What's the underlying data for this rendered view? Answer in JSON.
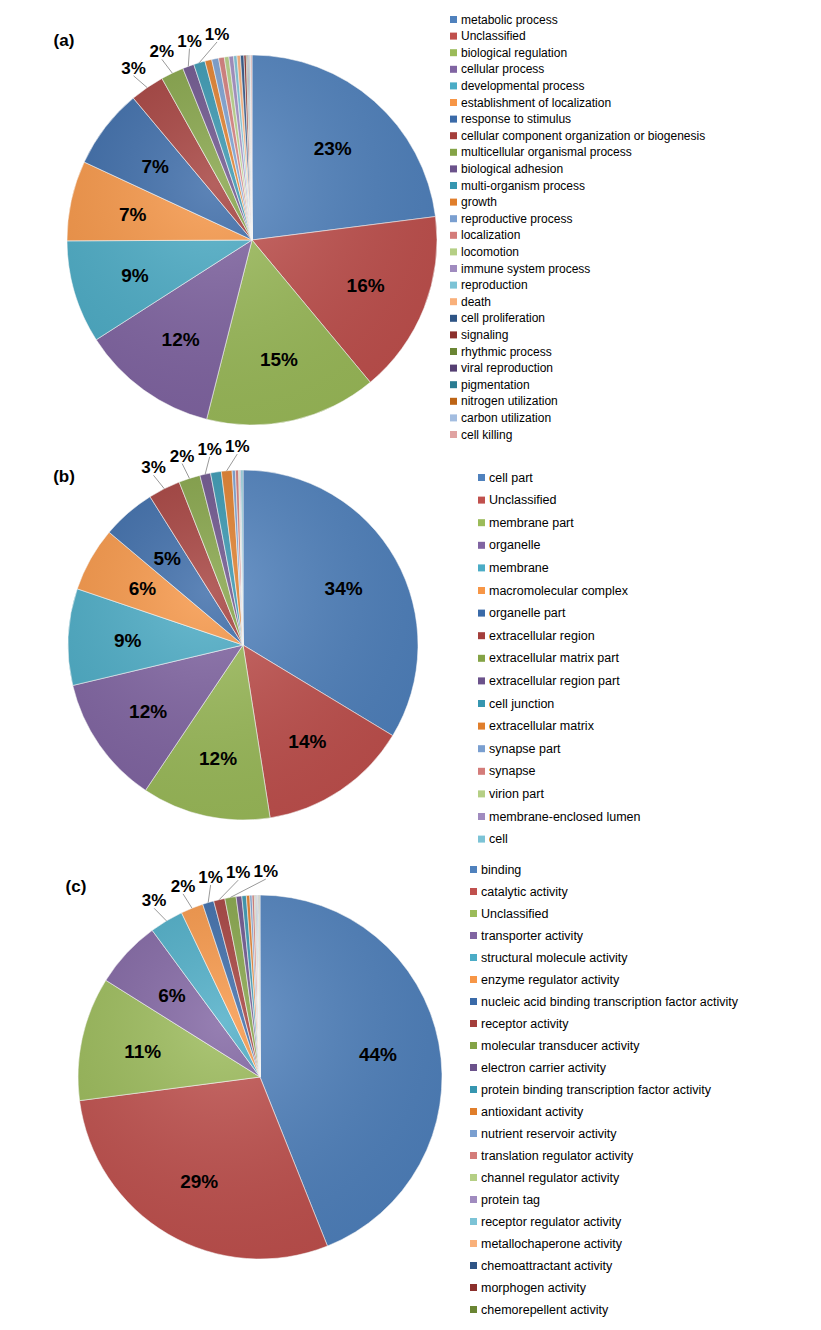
{
  "chart_data": [
    {
      "type": "pie",
      "title": "(a)",
      "data_labels": true,
      "legend": "right",
      "categories": [
        "metabolic process",
        "Unclassified",
        "biological regulation",
        "cellular process",
        "developmental process",
        "establishment of localization",
        "response to stimulus",
        "cellular component organization or biogenesis",
        "multicellular organismal process",
        "biological adhesion",
        "multi-organism process",
        "growth",
        "reproductive process",
        "localization",
        "locomotion",
        "immune system process",
        "reproduction",
        "death",
        "cell proliferation",
        "signaling",
        "rhythmic process",
        "viral reproduction",
        "pigmentation",
        "nitrogen utilization",
        "carbon utilization",
        "cell killing"
      ],
      "values": [
        23,
        16,
        15,
        12,
        9,
        7,
        7,
        3,
        2,
        1,
        1,
        0.6,
        0.6,
        0.5,
        0.4,
        0.4,
        0.3,
        0.3,
        0.3,
        0.2,
        0.1,
        0.1,
        0.1,
        0.05,
        0.05,
        0.1
      ],
      "value_labels": [
        "23%",
        "16%",
        "15%",
        "12%",
        "9%",
        "7%",
        "7%",
        "3%",
        "2%",
        "1%",
        "1%",
        null,
        null,
        null,
        null,
        null,
        null,
        null,
        null,
        null,
        null,
        null,
        null,
        null,
        null,
        null
      ],
      "colors": [
        "#4F81BD",
        "#C0504D",
        "#9BBB59",
        "#8064A2",
        "#4BACC6",
        "#F79646",
        "#3A6AA8",
        "#A43E3B",
        "#84A346",
        "#6B528B",
        "#3696B0",
        "#E07E2B",
        "#7A9FD0",
        "#D47C7A",
        "#B5CF85",
        "#A08BBF",
        "#7CC3D6",
        "#F9B07A",
        "#2E5485",
        "#8B2F2C",
        "#6A8533",
        "#553F72",
        "#2A7C92",
        "#BD6415",
        "#A3BDE0",
        "#E0A3A2"
      ]
    },
    {
      "type": "pie",
      "title": "(b)",
      "data_labels": true,
      "legend": "right",
      "categories": [
        "cell part",
        "Unclassified",
        "membrane part",
        "organelle",
        "membrane",
        "macromolecular complex",
        "organelle part",
        "extracellular region",
        "extracellular matrix part",
        "extracellular region part",
        "cell junction",
        "extracellular matrix",
        "synapse part",
        "synapse",
        "virion part",
        "membrane-enclosed lumen",
        "cell"
      ],
      "values": [
        34,
        14,
        12,
        12,
        9,
        6,
        5,
        3,
        2,
        1,
        1,
        1,
        0.3,
        0.3,
        0.1,
        0.1,
        0.2
      ],
      "value_labels": [
        "34%",
        "14%",
        "12%",
        "12%",
        "9%",
        "6%",
        "5%",
        "3%",
        "2%",
        "1%",
        null,
        "1%",
        null,
        null,
        null,
        null,
        null
      ],
      "colors": [
        "#4F81BD",
        "#C0504D",
        "#9BBB59",
        "#8064A2",
        "#4BACC6",
        "#F79646",
        "#3A6AA8",
        "#A43E3B",
        "#84A346",
        "#6B528B",
        "#3696B0",
        "#E07E2B",
        "#7A9FD0",
        "#D47C7A",
        "#B5CF85",
        "#A08BBF",
        "#7CC3D6"
      ]
    },
    {
      "type": "pie",
      "title": "(c)",
      "data_labels": true,
      "legend": "right",
      "categories": [
        "binding",
        "catalytic activity",
        "Unclassified",
        "transporter activity",
        "structural molecule activity",
        "enzyme regulator activity",
        "nucleic acid binding transcription factor activity",
        "receptor activity",
        "molecular transducer activity",
        "electron carrier activity",
        "protein binding transcription factor activity",
        "antioxidant activity",
        "nutrient reservoir activity",
        "translation regulator activity",
        "channel regulator activity",
        "protein tag",
        "receptor regulator activity",
        "metallochaperone activity",
        "chemoattractant activity",
        "morphogen activity",
        "chemorepellent activity"
      ],
      "values": [
        44,
        29,
        11,
        6,
        3,
        2,
        1,
        1,
        1,
        0.5,
        0.4,
        0.3,
        0.2,
        0.2,
        0.1,
        0.1,
        0.1,
        0.05,
        0.05,
        0.05,
        0.05
      ],
      "value_labels": [
        "44%",
        "29%",
        "11%",
        "6%",
        "3%",
        "2%",
        "1%",
        "1%",
        "1%",
        null,
        null,
        null,
        null,
        null,
        null,
        null,
        null,
        null,
        null,
        null,
        null
      ],
      "colors": [
        "#4F81BD",
        "#C0504D",
        "#9BBB59",
        "#8064A2",
        "#4BACC6",
        "#F79646",
        "#3A6AA8",
        "#A43E3B",
        "#84A346",
        "#6B528B",
        "#3696B0",
        "#E07E2B",
        "#7A9FD0",
        "#D47C7A",
        "#B5CF85",
        "#A08BBF",
        "#7CC3D6",
        "#F9B07A",
        "#2E5485",
        "#8B2F2C",
        "#6A8533"
      ]
    }
  ]
}
